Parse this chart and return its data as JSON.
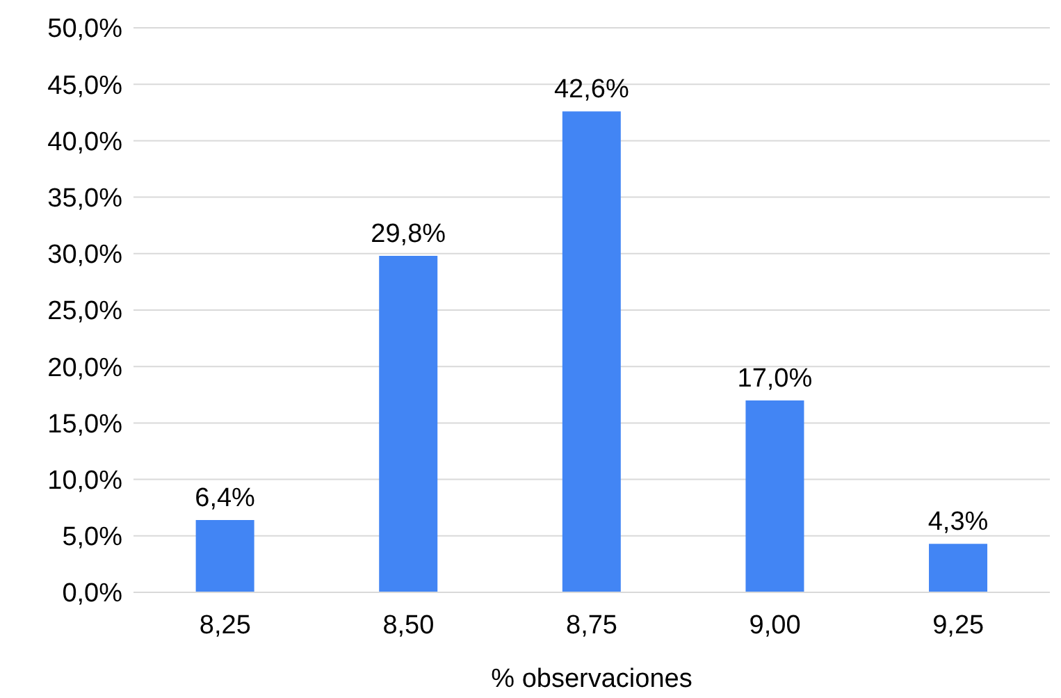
{
  "chart_data": {
    "type": "bar",
    "xlabel": "% observaciones",
    "categories": [
      "8,25",
      "8,50",
      "8,75",
      "9,00",
      "9,25"
    ],
    "values": [
      6.4,
      29.8,
      42.6,
      17.0,
      4.3
    ],
    "value_labels": [
      "6,4%",
      "29,8%",
      "42,6%",
      "17,0%",
      "4,3%"
    ],
    "color": "#4285f4",
    "ylim": [
      0,
      50
    ],
    "yticks": [
      {
        "value": 0,
        "label": "0,0%"
      },
      {
        "value": 5,
        "label": "5,0%"
      },
      {
        "value": 10,
        "label": "10,0%"
      },
      {
        "value": 15,
        "label": "15,0%"
      },
      {
        "value": 20,
        "label": "20,0%"
      },
      {
        "value": 25,
        "label": "25,0%"
      },
      {
        "value": 30,
        "label": "30,0%"
      },
      {
        "value": 35,
        "label": "35,0%"
      },
      {
        "value": 40,
        "label": "40,0%"
      },
      {
        "value": 45,
        "label": "45,0%"
      },
      {
        "value": 50,
        "label": "50,0%"
      }
    ],
    "grid": "y"
  }
}
